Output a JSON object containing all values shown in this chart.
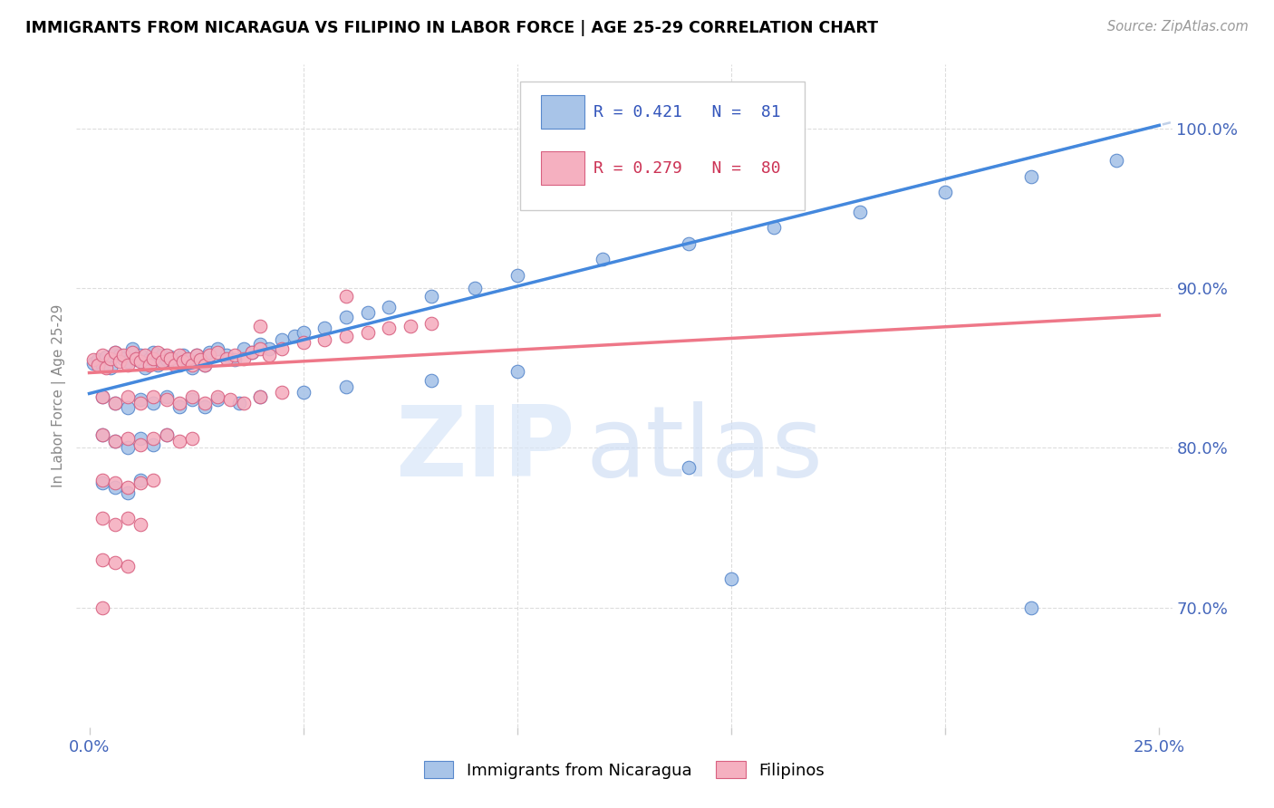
{
  "title": "IMMIGRANTS FROM NICARAGUA VS FILIPINO IN LABOR FORCE | AGE 25-29 CORRELATION CHART",
  "source": "Source: ZipAtlas.com",
  "ylabel": "In Labor Force | Age 25-29",
  "xlim": [
    0.0,
    0.25
  ],
  "ylim": [
    0.625,
    1.04
  ],
  "blue_color": "#a8c4e8",
  "pink_color": "#f5b0c0",
  "blue_edge": "#5888cc",
  "pink_edge": "#d86080",
  "line_blue": "#4488dd",
  "line_pink": "#ee7788",
  "line_dash_color": "#c0d0e8",
  "right_tick_color": "#4466bb",
  "xtick_color": "#4466bb",
  "watermark_zip_color": "#d8e6f8",
  "watermark_atlas_color": "#d0dff5",
  "blue_scatter_x": [
    0.001,
    0.002,
    0.003,
    0.004,
    0.005,
    0.006,
    0.007,
    0.008,
    0.009,
    0.01,
    0.011,
    0.012,
    0.013,
    0.014,
    0.015,
    0.016,
    0.017,
    0.018,
    0.019,
    0.02,
    0.021,
    0.022,
    0.023,
    0.024,
    0.025,
    0.026,
    0.027,
    0.028,
    0.03,
    0.032,
    0.034,
    0.036,
    0.038,
    0.04,
    0.042,
    0.045,
    0.048,
    0.05,
    0.055,
    0.06,
    0.065,
    0.07,
    0.08,
    0.09,
    0.1,
    0.12,
    0.14,
    0.16,
    0.18,
    0.2,
    0.22,
    0.24,
    0.003,
    0.006,
    0.009,
    0.012,
    0.015,
    0.018,
    0.021,
    0.024,
    0.027,
    0.03,
    0.035,
    0.04,
    0.05,
    0.06,
    0.08,
    0.1,
    0.003,
    0.006,
    0.009,
    0.012,
    0.015,
    0.018,
    0.003,
    0.006,
    0.009,
    0.012,
    0.14,
    0.22,
    0.15
  ],
  "blue_scatter_y": [
    0.853,
    0.855,
    0.852,
    0.857,
    0.85,
    0.86,
    0.858,
    0.856,
    0.854,
    0.862,
    0.855,
    0.858,
    0.85,
    0.856,
    0.86,
    0.852,
    0.858,
    0.855,
    0.857,
    0.854,
    0.852,
    0.858,
    0.855,
    0.85,
    0.858,
    0.855,
    0.852,
    0.86,
    0.862,
    0.858,
    0.855,
    0.862,
    0.86,
    0.865,
    0.862,
    0.868,
    0.87,
    0.872,
    0.875,
    0.882,
    0.885,
    0.888,
    0.895,
    0.9,
    0.908,
    0.918,
    0.928,
    0.938,
    0.948,
    0.96,
    0.97,
    0.98,
    0.832,
    0.828,
    0.825,
    0.83,
    0.828,
    0.832,
    0.826,
    0.83,
    0.826,
    0.83,
    0.828,
    0.832,
    0.835,
    0.838,
    0.842,
    0.848,
    0.808,
    0.804,
    0.8,
    0.806,
    0.802,
    0.808,
    0.778,
    0.775,
    0.772,
    0.78,
    0.788,
    0.7,
    0.718
  ],
  "pink_scatter_x": [
    0.001,
    0.002,
    0.003,
    0.004,
    0.005,
    0.006,
    0.007,
    0.008,
    0.009,
    0.01,
    0.011,
    0.012,
    0.013,
    0.014,
    0.015,
    0.016,
    0.017,
    0.018,
    0.019,
    0.02,
    0.021,
    0.022,
    0.023,
    0.024,
    0.025,
    0.026,
    0.027,
    0.028,
    0.03,
    0.032,
    0.034,
    0.036,
    0.038,
    0.04,
    0.042,
    0.045,
    0.05,
    0.055,
    0.06,
    0.065,
    0.07,
    0.075,
    0.08,
    0.003,
    0.006,
    0.009,
    0.012,
    0.015,
    0.018,
    0.021,
    0.024,
    0.027,
    0.03,
    0.033,
    0.036,
    0.04,
    0.045,
    0.003,
    0.006,
    0.009,
    0.012,
    0.015,
    0.018,
    0.021,
    0.024,
    0.003,
    0.006,
    0.009,
    0.012,
    0.015,
    0.003,
    0.006,
    0.009,
    0.012,
    0.003,
    0.006,
    0.009,
    0.003,
    0.04,
    0.06
  ],
  "pink_scatter_y": [
    0.855,
    0.852,
    0.858,
    0.85,
    0.856,
    0.86,
    0.854,
    0.858,
    0.852,
    0.86,
    0.856,
    0.854,
    0.858,
    0.852,
    0.856,
    0.86,
    0.854,
    0.858,
    0.856,
    0.852,
    0.858,
    0.854,
    0.856,
    0.852,
    0.858,
    0.855,
    0.852,
    0.858,
    0.86,
    0.856,
    0.858,
    0.856,
    0.86,
    0.862,
    0.858,
    0.862,
    0.866,
    0.868,
    0.87,
    0.872,
    0.875,
    0.876,
    0.878,
    0.832,
    0.828,
    0.832,
    0.828,
    0.832,
    0.83,
    0.828,
    0.832,
    0.828,
    0.832,
    0.83,
    0.828,
    0.832,
    0.835,
    0.808,
    0.804,
    0.806,
    0.802,
    0.806,
    0.808,
    0.804,
    0.806,
    0.78,
    0.778,
    0.775,
    0.778,
    0.78,
    0.756,
    0.752,
    0.756,
    0.752,
    0.73,
    0.728,
    0.726,
    0.7,
    0.876,
    0.895
  ]
}
